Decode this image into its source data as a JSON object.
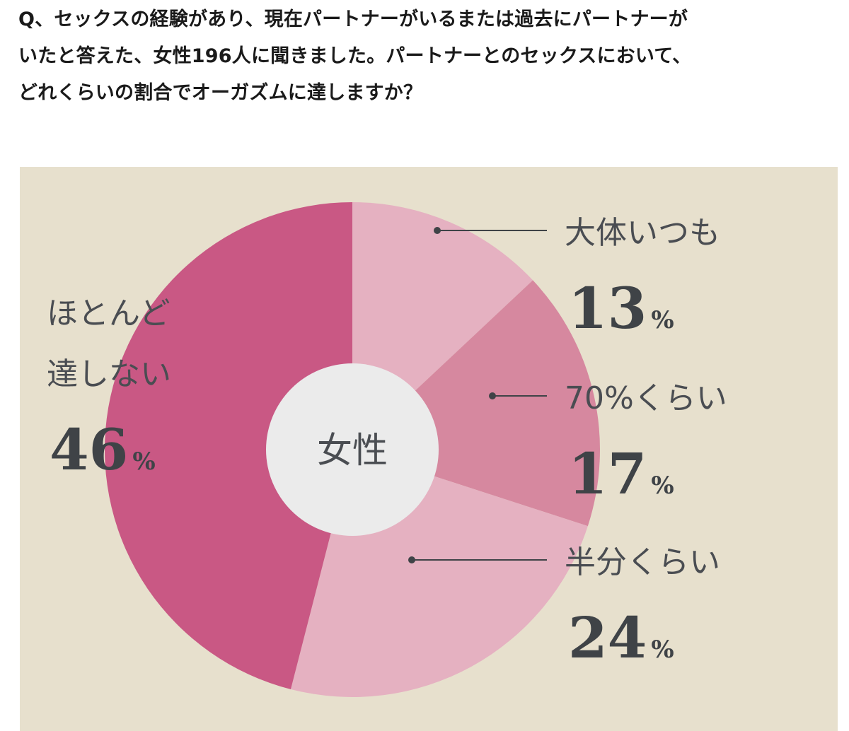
{
  "question": {
    "lines": [
      "Q、セックスの経験があり、現在パートナーがいるまたは過去にパートナーが",
      "いたと答えた、女性196人に聞きました。パートナーとのセックスにおいて、",
      "どれくらいの割合でオーガズムに達しますか？"
    ]
  },
  "chart_data": {
    "type": "pie",
    "center_label": "女性",
    "unit": "%",
    "slices": [
      {
        "label": "大体いつも",
        "value": 13,
        "color": "#e5b1c1"
      },
      {
        "label": "70%くらい",
        "value": 17,
        "color": "#d6889f"
      },
      {
        "label": "半分くらい",
        "value": 24,
        "color": "#e5b1c1"
      },
      {
        "label": "ほとんど達しない",
        "value": 46,
        "color": "#c95884"
      }
    ],
    "colors": {
      "background": "#e7e0cd",
      "center_disc": "#ebebeb",
      "text": "#3f4347"
    }
  }
}
